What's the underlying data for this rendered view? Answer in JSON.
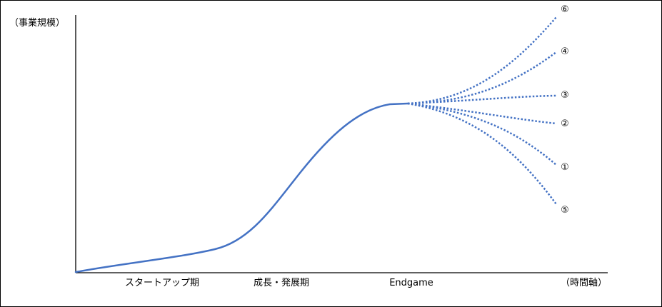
{
  "diagram": {
    "y_axis_label": "（事業規模）",
    "x_axis_label": "（時間軸）",
    "phases": [
      "スタートアップ期",
      "成長・発展期",
      "Endgame"
    ],
    "scenario_labels": [
      "⑥",
      "④",
      "③",
      "②",
      "①",
      "⑤"
    ],
    "colors": {
      "curve": "#4472c4",
      "axis": "#000000",
      "text": "#000000"
    }
  }
}
